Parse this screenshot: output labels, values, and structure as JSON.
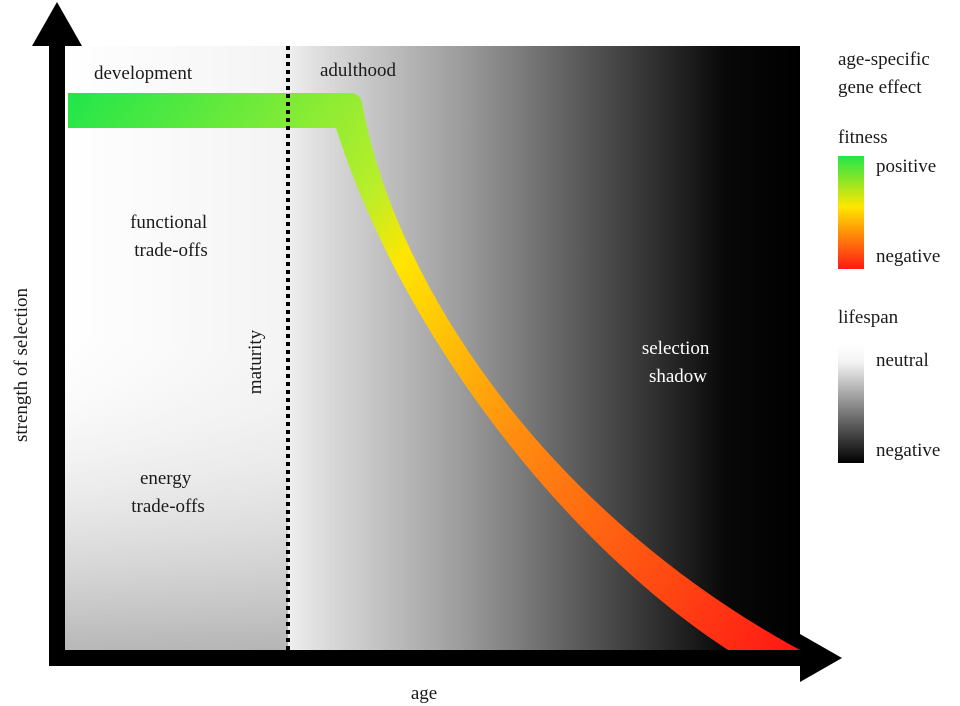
{
  "axes": {
    "x_label": "age",
    "y_label": "strength of selection"
  },
  "phases": {
    "development": "development",
    "adulthood": "adulthood",
    "maturity": "maturity"
  },
  "regions": {
    "functional": [
      "functional",
      "trade-offs"
    ],
    "energy": [
      "energy",
      "trade-offs"
    ],
    "shadow": [
      "selection",
      "shadow"
    ]
  },
  "legend": {
    "title": [
      "age-specific",
      "gene effect"
    ],
    "fitness": {
      "label": "fitness",
      "high": "positive",
      "low": "negative",
      "colors": [
        "#22e64a",
        "#ffe600",
        "#ff2a1a"
      ]
    },
    "lifespan": {
      "label": "lifespan",
      "high": "neutral",
      "low": "negative",
      "colors": [
        "#ffffff",
        "#000000"
      ]
    }
  }
}
